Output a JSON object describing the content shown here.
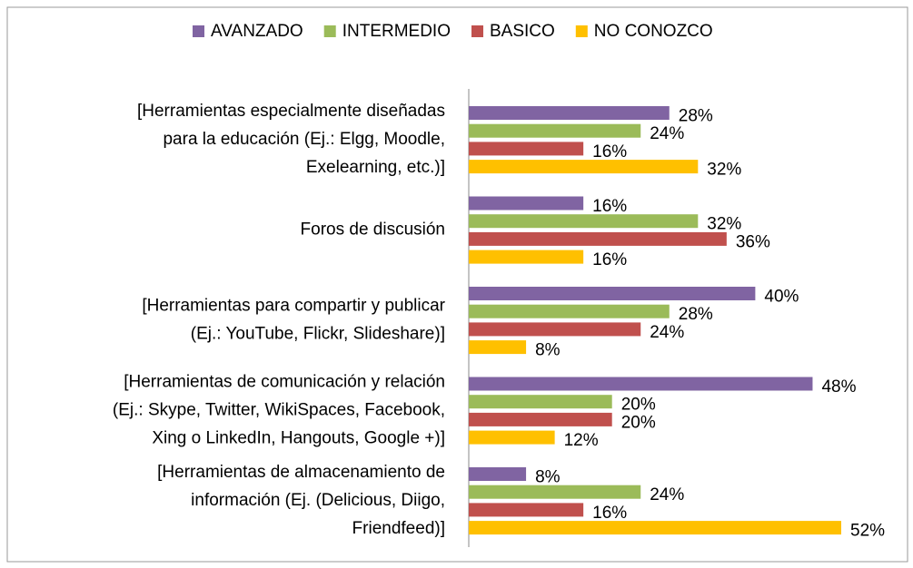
{
  "chart_data": {
    "type": "hbar",
    "categories": [
      "[Herramientas especialmente diseñadas\npara la educación (Ej.: Elgg, Moodle,\nExelearning, etc.)]",
      "Foros de discusión",
      "[Herramientas para compartir y publicar\n(Ej.: YouTube, Flickr, Slideshare)]",
      "[Herramientas de comunicación y relación\n(Ej.: Skype,  Twitter, WikiSpaces, Facebook,\nXing o LinkedIn, Hangouts,  Google +)]",
      "[Herramientas de almacenamiento de\ninformación (Ej. (Delicious, Diigo,\nFriendfeed)]"
    ],
    "series": [
      {
        "name": "AVANZADO",
        "color": "#8064a2",
        "values": [
          28,
          16,
          40,
          48,
          8
        ],
        "value_labels": [
          "28%",
          "16%",
          "40%",
          "48%",
          "8%"
        ]
      },
      {
        "name": "INTERMEDIO",
        "color": "#9bbb59",
        "values": [
          24,
          32,
          28,
          20,
          24
        ],
        "value_labels": [
          "24%",
          "32%",
          "28%",
          "20%",
          "24%"
        ]
      },
      {
        "name": "BASICO",
        "color": "#c0504d",
        "values": [
          16,
          36,
          24,
          20,
          16
        ],
        "value_labels": [
          "16%",
          "36%",
          "24%",
          "20%",
          "16%"
        ]
      },
      {
        "name": "NO CONOZCO",
        "color": "#ffc000",
        "values": [
          32,
          16,
          8,
          12,
          52
        ],
        "value_labels": [
          "32%",
          "16%",
          "8%",
          "12%",
          "52%"
        ]
      }
    ],
    "legend": "top"
  }
}
